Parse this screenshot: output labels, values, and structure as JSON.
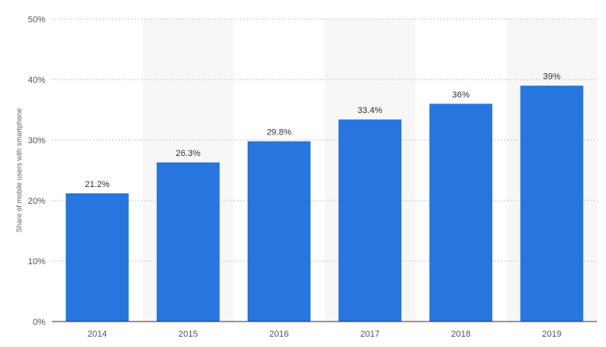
{
  "chart_data": {
    "type": "bar",
    "title": "",
    "xlabel": "",
    "ylabel": "Share of mobile users with smartphone",
    "categories": [
      "2014",
      "2015",
      "2016",
      "2017",
      "2018",
      "2019"
    ],
    "values": [
      21.2,
      26.3,
      29.8,
      33.4,
      36,
      39
    ],
    "value_labels": [
      "21.2%",
      "26.3%",
      "29.8%",
      "33.4%",
      "36%",
      "39%"
    ],
    "ylim": [
      0,
      50
    ],
    "y_ticks": [
      0,
      10,
      20,
      30,
      40,
      50
    ],
    "y_tick_labels": [
      "0%",
      "10%",
      "20%",
      "30%",
      "40%",
      "50%"
    ],
    "grid": true,
    "legend": "none",
    "colors": {
      "bar": "#2775de",
      "band": "#f7f7f7",
      "grid": "#c8c8c8",
      "axis": "#333333",
      "tick_text": "#555555",
      "label_text": "#333333",
      "ylabel_text": "#666666"
    }
  }
}
